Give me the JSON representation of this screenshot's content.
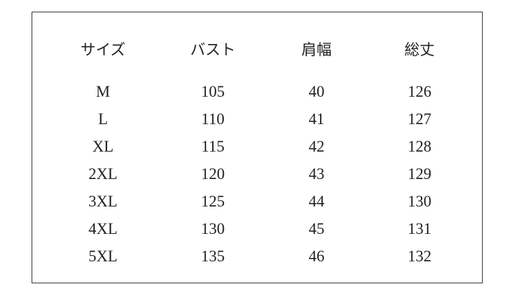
{
  "table": {
    "headers": [
      "サイズ",
      "バスト",
      "肩幅",
      "総丈"
    ],
    "rows": [
      [
        "M",
        "105",
        "40",
        "126"
      ],
      [
        "L",
        "110",
        "41",
        "127"
      ],
      [
        "XL",
        "115",
        "42",
        "128"
      ],
      [
        "2XL",
        "120",
        "43",
        "129"
      ],
      [
        "3XL",
        "125",
        "44",
        "130"
      ],
      [
        "4XL",
        "130",
        "45",
        "131"
      ],
      [
        "5XL",
        "135",
        "46",
        "132"
      ]
    ]
  }
}
